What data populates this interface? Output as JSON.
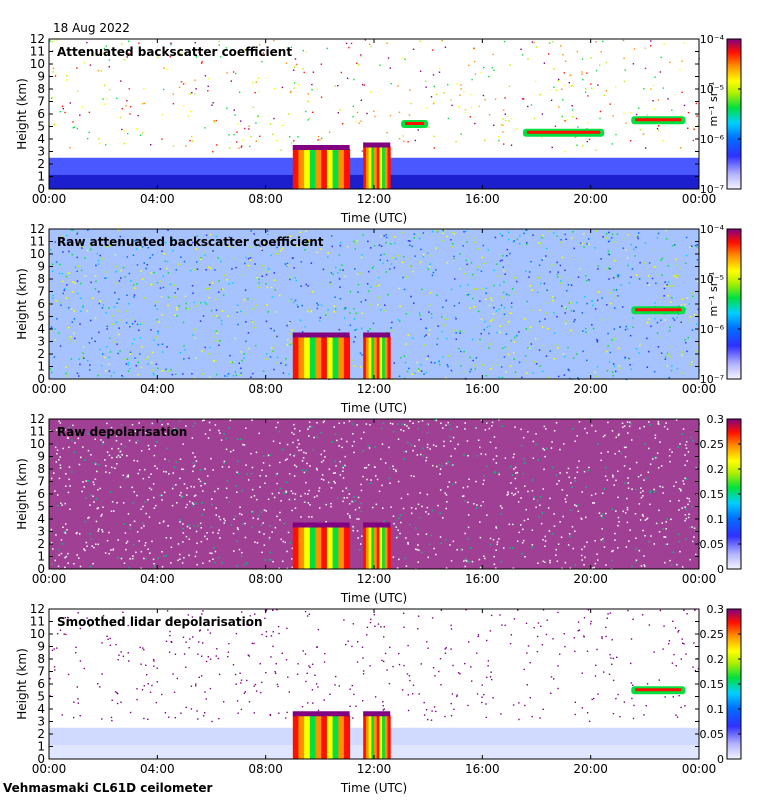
{
  "figure": {
    "date": "18 Aug 2022",
    "site": "Vehmasmaki CL61D ceilometer"
  },
  "chart_data": [
    {
      "type": "heatmap",
      "title": "Attenuated backscatter coefficient",
      "xlabel": "Time (UTC)",
      "ylabel": "Height (km)",
      "x_ticks": [
        "00:00",
        "04:00",
        "08:00",
        "12:00",
        "16:00",
        "20:00",
        "00:00"
      ],
      "x_range_hours": [
        0,
        24
      ],
      "y_ticks": [
        0,
        1,
        2,
        3,
        4,
        5,
        6,
        7,
        8,
        9,
        10,
        11,
        12
      ],
      "ylim": [
        0,
        12
      ],
      "colorbar": {
        "scale": "log",
        "range": [
          1e-07,
          0.0001
        ],
        "ticks": [
          "10⁻⁷",
          "10⁻⁶",
          "10⁻⁵",
          "10⁻⁴"
        ],
        "units": "m⁻¹ sr⁻¹"
      },
      "features": [
        {
          "kind": "low aerosol layer",
          "start_h": 0,
          "end_h": 24,
          "top_km": 2.5
        },
        {
          "kind": "cloud/precipitation",
          "start_h": 9.0,
          "end_h": 11.1,
          "base_km": 0,
          "top_km": 3.2
        },
        {
          "kind": "cloud/precipitation",
          "start_h": 11.6,
          "end_h": 12.6,
          "base_km": 0,
          "top_km": 3.4
        },
        {
          "kind": "cloud layer",
          "start_h": 13.0,
          "end_h": 14.0,
          "height_km": 5.2
        },
        {
          "kind": "cloud layer",
          "start_h": 17.5,
          "end_h": 20.5,
          "height_km": 4.5
        },
        {
          "kind": "cloud layer",
          "start_h": 21.5,
          "end_h": 23.5,
          "height_km": 5.5
        }
      ]
    },
    {
      "type": "heatmap",
      "title": "Raw attenuated backscatter coefficient",
      "xlabel": "Time (UTC)",
      "ylabel": "Height (km)",
      "x_ticks": [
        "00:00",
        "04:00",
        "08:00",
        "12:00",
        "16:00",
        "20:00",
        "00:00"
      ],
      "x_range_hours": [
        0,
        24
      ],
      "y_ticks": [
        0,
        1,
        2,
        3,
        4,
        5,
        6,
        7,
        8,
        9,
        10,
        11,
        12
      ],
      "ylim": [
        0,
        12
      ],
      "colorbar": {
        "scale": "log",
        "range": [
          1e-07,
          0.0001
        ],
        "ticks": [
          "10⁻⁷",
          "10⁻⁶",
          "10⁻⁵",
          "10⁻⁴"
        ],
        "units": "m⁻¹ sr⁻¹"
      },
      "features": [
        {
          "kind": "noise field",
          "start_h": 0,
          "end_h": 24,
          "top_km": 12
        },
        {
          "kind": "cloud/precipitation",
          "start_h": 9.0,
          "end_h": 11.1,
          "base_km": 0,
          "top_km": 3.4
        },
        {
          "kind": "cloud/precipitation",
          "start_h": 11.6,
          "end_h": 12.6,
          "base_km": 0,
          "top_km": 3.4
        },
        {
          "kind": "cloud layer",
          "start_h": 21.5,
          "end_h": 23.5,
          "height_km": 5.5
        }
      ]
    },
    {
      "type": "heatmap",
      "title": "Raw depolarisation",
      "xlabel": "Time (UTC)",
      "ylabel": "Height (km)",
      "x_ticks": [
        "00:00",
        "04:00",
        "08:00",
        "12:00",
        "16:00",
        "20:00",
        "00:00"
      ],
      "x_range_hours": [
        0,
        24
      ],
      "y_ticks": [
        0,
        1,
        2,
        3,
        4,
        5,
        6,
        7,
        8,
        9,
        10,
        11,
        12
      ],
      "ylim": [
        0,
        12
      ],
      "colorbar": {
        "scale": "linear",
        "range": [
          0,
          0.3
        ],
        "ticks": [
          "0",
          "0.05",
          "0.1",
          "0.15",
          "0.2",
          "0.25",
          "0.3"
        ]
      },
      "features": [
        {
          "kind": "noise field",
          "start_h": 0,
          "end_h": 24,
          "top_km": 12
        },
        {
          "kind": "cloud/precipitation",
          "start_h": 9.0,
          "end_h": 11.1,
          "base_km": 0,
          "top_km": 3.4
        },
        {
          "kind": "cloud/precipitation",
          "start_h": 11.6,
          "end_h": 12.6,
          "base_km": 0,
          "top_km": 3.4
        }
      ]
    },
    {
      "type": "heatmap",
      "title": "Smoothed lidar depolarisation",
      "xlabel": "Time (UTC)",
      "ylabel": "Height (km)",
      "x_ticks": [
        "00:00",
        "04:00",
        "08:00",
        "12:00",
        "16:00",
        "20:00",
        "00:00"
      ],
      "x_range_hours": [
        0,
        24
      ],
      "y_ticks": [
        0,
        1,
        2,
        3,
        4,
        5,
        6,
        7,
        8,
        9,
        10,
        11,
        12
      ],
      "ylim": [
        0,
        12
      ],
      "colorbar": {
        "scale": "linear",
        "range": [
          0,
          0.3
        ],
        "ticks": [
          "0",
          "0.05",
          "0.1",
          "0.15",
          "0.2",
          "0.25",
          "0.3"
        ]
      },
      "features": [
        {
          "kind": "low aerosol layer",
          "start_h": 0,
          "end_h": 24,
          "top_km": 2.5
        },
        {
          "kind": "cloud/precipitation",
          "start_h": 9.0,
          "end_h": 11.1,
          "base_km": 0,
          "top_km": 3.5
        },
        {
          "kind": "cloud/precipitation",
          "start_h": 11.6,
          "end_h": 12.6,
          "base_km": 0,
          "top_km": 3.5
        },
        {
          "kind": "cloud layer",
          "start_h": 21.5,
          "end_h": 23.5,
          "height_km": 5.5
        }
      ]
    }
  ]
}
